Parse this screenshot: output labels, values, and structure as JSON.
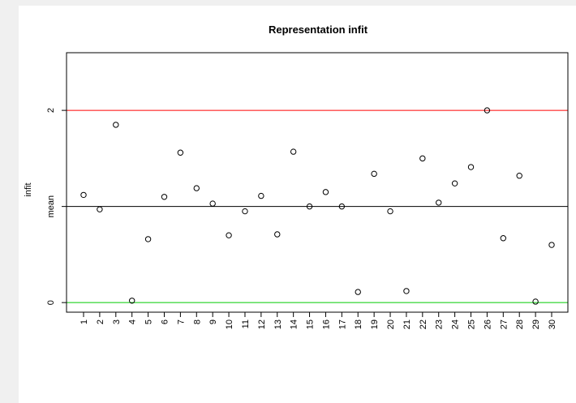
{
  "chart_data": {
    "type": "scatter",
    "title": "Representation infit",
    "ylabel": "infit",
    "categories": [
      "1",
      "2",
      "3",
      "4",
      "5",
      "6",
      "7",
      "8",
      "9",
      "10",
      "11",
      "12",
      "13",
      "14",
      "15",
      "16",
      "17",
      "18",
      "19",
      "20",
      "21",
      "22",
      "23",
      "24",
      "25",
      "26",
      "27",
      "28",
      "29",
      "30"
    ],
    "values": [
      1.12,
      0.97,
      1.85,
      0.02,
      0.66,
      1.1,
      1.56,
      1.19,
      1.03,
      0.7,
      0.95,
      1.11,
      0.71,
      1.57,
      1.0,
      1.15,
      1.0,
      0.11,
      1.34,
      0.95,
      0.12,
      1.5,
      1.04,
      1.24,
      1.41,
      2.0,
      0.67,
      1.32,
      0.01,
      0.6
    ],
    "ylim": [
      -0.1,
      2.6
    ],
    "y_ticks": [
      0,
      2
    ],
    "mean_tick_label": "mean",
    "reference_lines": [
      {
        "value": 2,
        "color": "#ff0000"
      },
      {
        "value": 1,
        "color": "#000000"
      },
      {
        "value": 0,
        "color": "#00cc00"
      }
    ],
    "grid": false,
    "legend": "none"
  }
}
